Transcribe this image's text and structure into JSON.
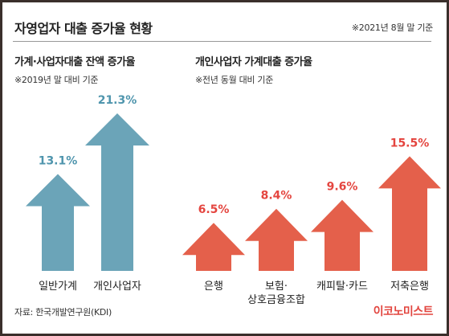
{
  "header": {
    "title": "자영업자 대출 증가율 현황",
    "basis": "※2021년 8월 말 기준"
  },
  "footer": {
    "source": "자료: 한국개발연구원(KDI)",
    "brand": "이코노미스트"
  },
  "colors": {
    "left_arrow": "#6ba4b8",
    "left_value": "#4f95ad",
    "right_arrow": "#e4604b",
    "right_value": "#e4453f"
  },
  "chart_data": [
    {
      "type": "bar",
      "title": "가계·사업자대출 잔액 증가율",
      "subtitle": "※2019년 말 대비 기준",
      "categories": [
        "일반가계",
        "개인사업자"
      ],
      "values": [
        13.1,
        21.3
      ],
      "value_labels": [
        "13.1%",
        "21.3%"
      ],
      "unit": "%"
    },
    {
      "type": "bar",
      "title": "개인사업자 가계대출 증가율",
      "subtitle": "※전년 동월 대비 기준",
      "categories": [
        "은행",
        "보험·\n상호금융조합",
        "캐피탈·카드",
        "저축은행"
      ],
      "values": [
        6.5,
        8.4,
        9.6,
        15.5
      ],
      "value_labels": [
        "6.5%",
        "8.4%",
        "9.6%",
        "15.5%"
      ],
      "unit": "%"
    }
  ]
}
